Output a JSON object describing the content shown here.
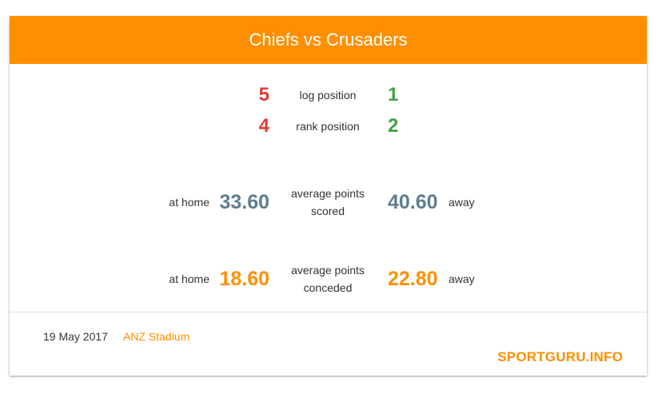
{
  "header": {
    "title": "Chiefs vs Crusaders"
  },
  "positions": [
    {
      "label": "log position",
      "home": "5",
      "away": "1"
    },
    {
      "label": "rank position",
      "home": "4",
      "away": "2"
    }
  ],
  "scored": {
    "home_label": "at home",
    "home_value": "33.60",
    "label_line1": "average points",
    "label_line2": "scored",
    "away_value": "40.60",
    "away_label": "away"
  },
  "conceded": {
    "home_label": "at home",
    "home_value": "18.60",
    "label_line1": "average points",
    "label_line2": "conceded",
    "away_value": "22.80",
    "away_label": "away"
  },
  "footer": {
    "date": "19 May 2017",
    "venue": "ANZ Stadium",
    "brand": "SPORTGURU.INFO"
  },
  "colors": {
    "accent": "#ff8f00",
    "home_rank": "#e53935",
    "away_rank": "#43a047",
    "scored": "#5f7d8e"
  }
}
